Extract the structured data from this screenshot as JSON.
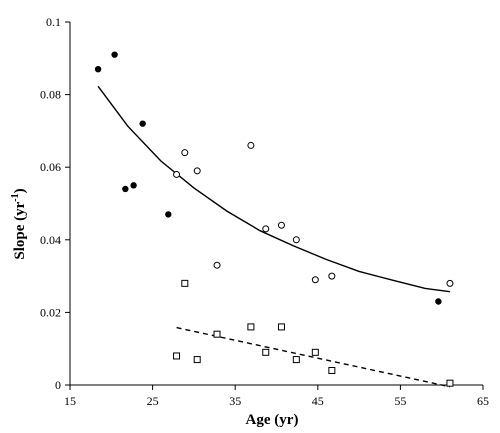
{
  "chart_data": {
    "type": "scatter",
    "xlabel": "Age (yr)",
    "ylabel_main": "Slope (yr",
    "ylabel_sup": "-1",
    "ylabel_close": ")",
    "xlim": [
      15,
      65
    ],
    "ylim": [
      0,
      0.1
    ],
    "xticks": [
      15,
      25,
      35,
      45,
      55,
      65
    ],
    "yticks": [
      0,
      0.02,
      0.04,
      0.06,
      0.08,
      0.1
    ],
    "xtick_labels": [
      "15",
      "25",
      "35",
      "45",
      "55",
      "65"
    ],
    "ytick_labels": [
      "0",
      "0.02",
      "0.04",
      "0.06",
      "0.08",
      "0.1"
    ],
    "grid": false,
    "series": [
      {
        "marker": "filled-circle",
        "x": [
          18.4,
          20.4,
          21.7,
          22.7,
          23.8,
          26.9,
          59.6
        ],
        "y": [
          0.087,
          0.091,
          0.054,
          0.055,
          0.072,
          0.047,
          0.023
        ]
      },
      {
        "marker": "open-circle",
        "x": [
          27.9,
          28.9,
          30.4,
          32.8,
          36.9,
          38.7,
          40.6,
          42.4,
          44.7,
          46.7,
          61.0
        ],
        "y": [
          0.058,
          0.064,
          0.059,
          0.033,
          0.066,
          0.043,
          0.044,
          0.04,
          0.029,
          0.03,
          0.028
        ]
      },
      {
        "marker": "open-square",
        "x": [
          27.9,
          28.9,
          30.4,
          32.8,
          36.9,
          38.7,
          40.6,
          42.4,
          44.7,
          46.7,
          61.0
        ],
        "y": [
          0.008,
          0.028,
          0.007,
          0.014,
          0.016,
          0.009,
          0.016,
          0.007,
          0.009,
          0.004,
          0.0005
        ]
      }
    ],
    "fits": [
      {
        "style": "solid",
        "x": [
          18.4,
          22,
          26,
          30,
          34,
          38,
          42,
          46,
          50,
          54,
          58,
          61
        ],
        "y": [
          0.0823,
          0.0713,
          0.0617,
          0.0543,
          0.0479,
          0.0425,
          0.0384,
          0.0346,
          0.0313,
          0.0289,
          0.0266,
          0.0257
        ]
      },
      {
        "style": "dashed",
        "x": [
          27.9,
          61.0
        ],
        "y": [
          0.0158,
          -0.0005
        ]
      }
    ]
  }
}
